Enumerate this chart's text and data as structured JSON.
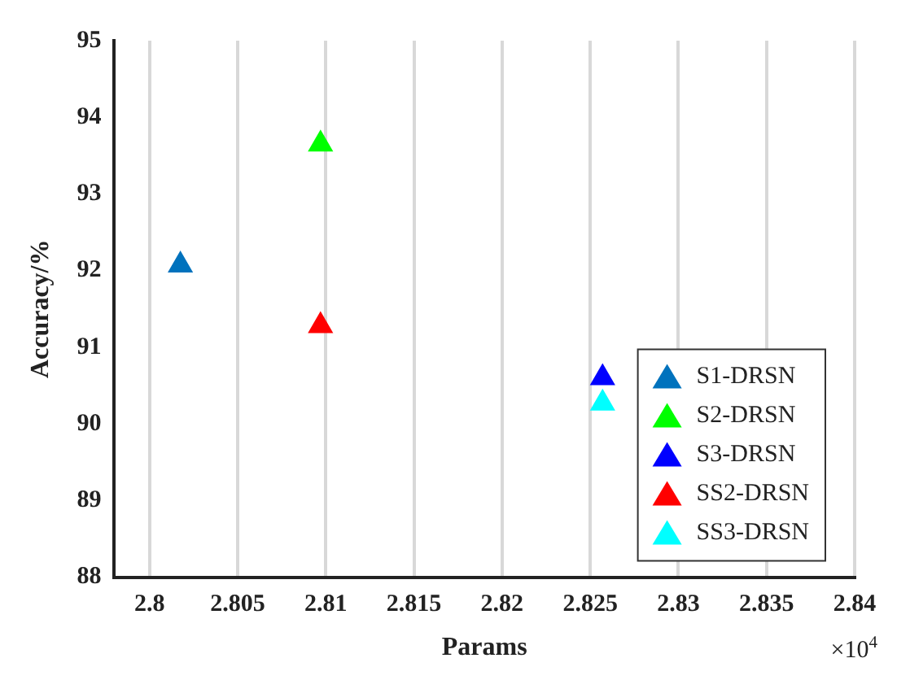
{
  "chart_data": {
    "type": "scatter",
    "xlabel": "Params",
    "ylabel": "Accuracy/%",
    "annotations": [
      "×10$^{4}$"
    ],
    "xlim": [
      2.798,
      2.84
    ],
    "xticks": [
      2.8,
      2.805,
      2.81,
      2.815,
      2.82,
      2.825,
      2.83,
      2.835,
      2.84
    ],
    "ylim": [
      88,
      95
    ],
    "yticks": [
      88,
      89,
      90,
      91,
      92,
      93,
      94,
      95
    ],
    "grid": "x",
    "legend": "bottom right",
    "marker": "triangle",
    "series": [
      {
        "name": "S1-DRSN",
        "color": "#0072bd",
        "x": [
          2.80175
        ],
        "values": [
          92.07
        ]
      },
      {
        "name": "S2-DRSN",
        "color": "#00ff00",
        "x": [
          2.8097
        ],
        "values": [
          93.65
        ]
      },
      {
        "name": "S3-DRSN",
        "color": "#0000ff",
        "x": [
          2.8257
        ],
        "values": [
          90.6
        ]
      },
      {
        "name": "SS2-DRSN",
        "color": "#ff0000",
        "x": [
          2.8097
        ],
        "values": [
          91.28
        ]
      },
      {
        "name": "SS3-DRSN",
        "color": "#00ffff",
        "x": [
          2.8257
        ],
        "values": [
          90.27
        ]
      }
    ]
  }
}
